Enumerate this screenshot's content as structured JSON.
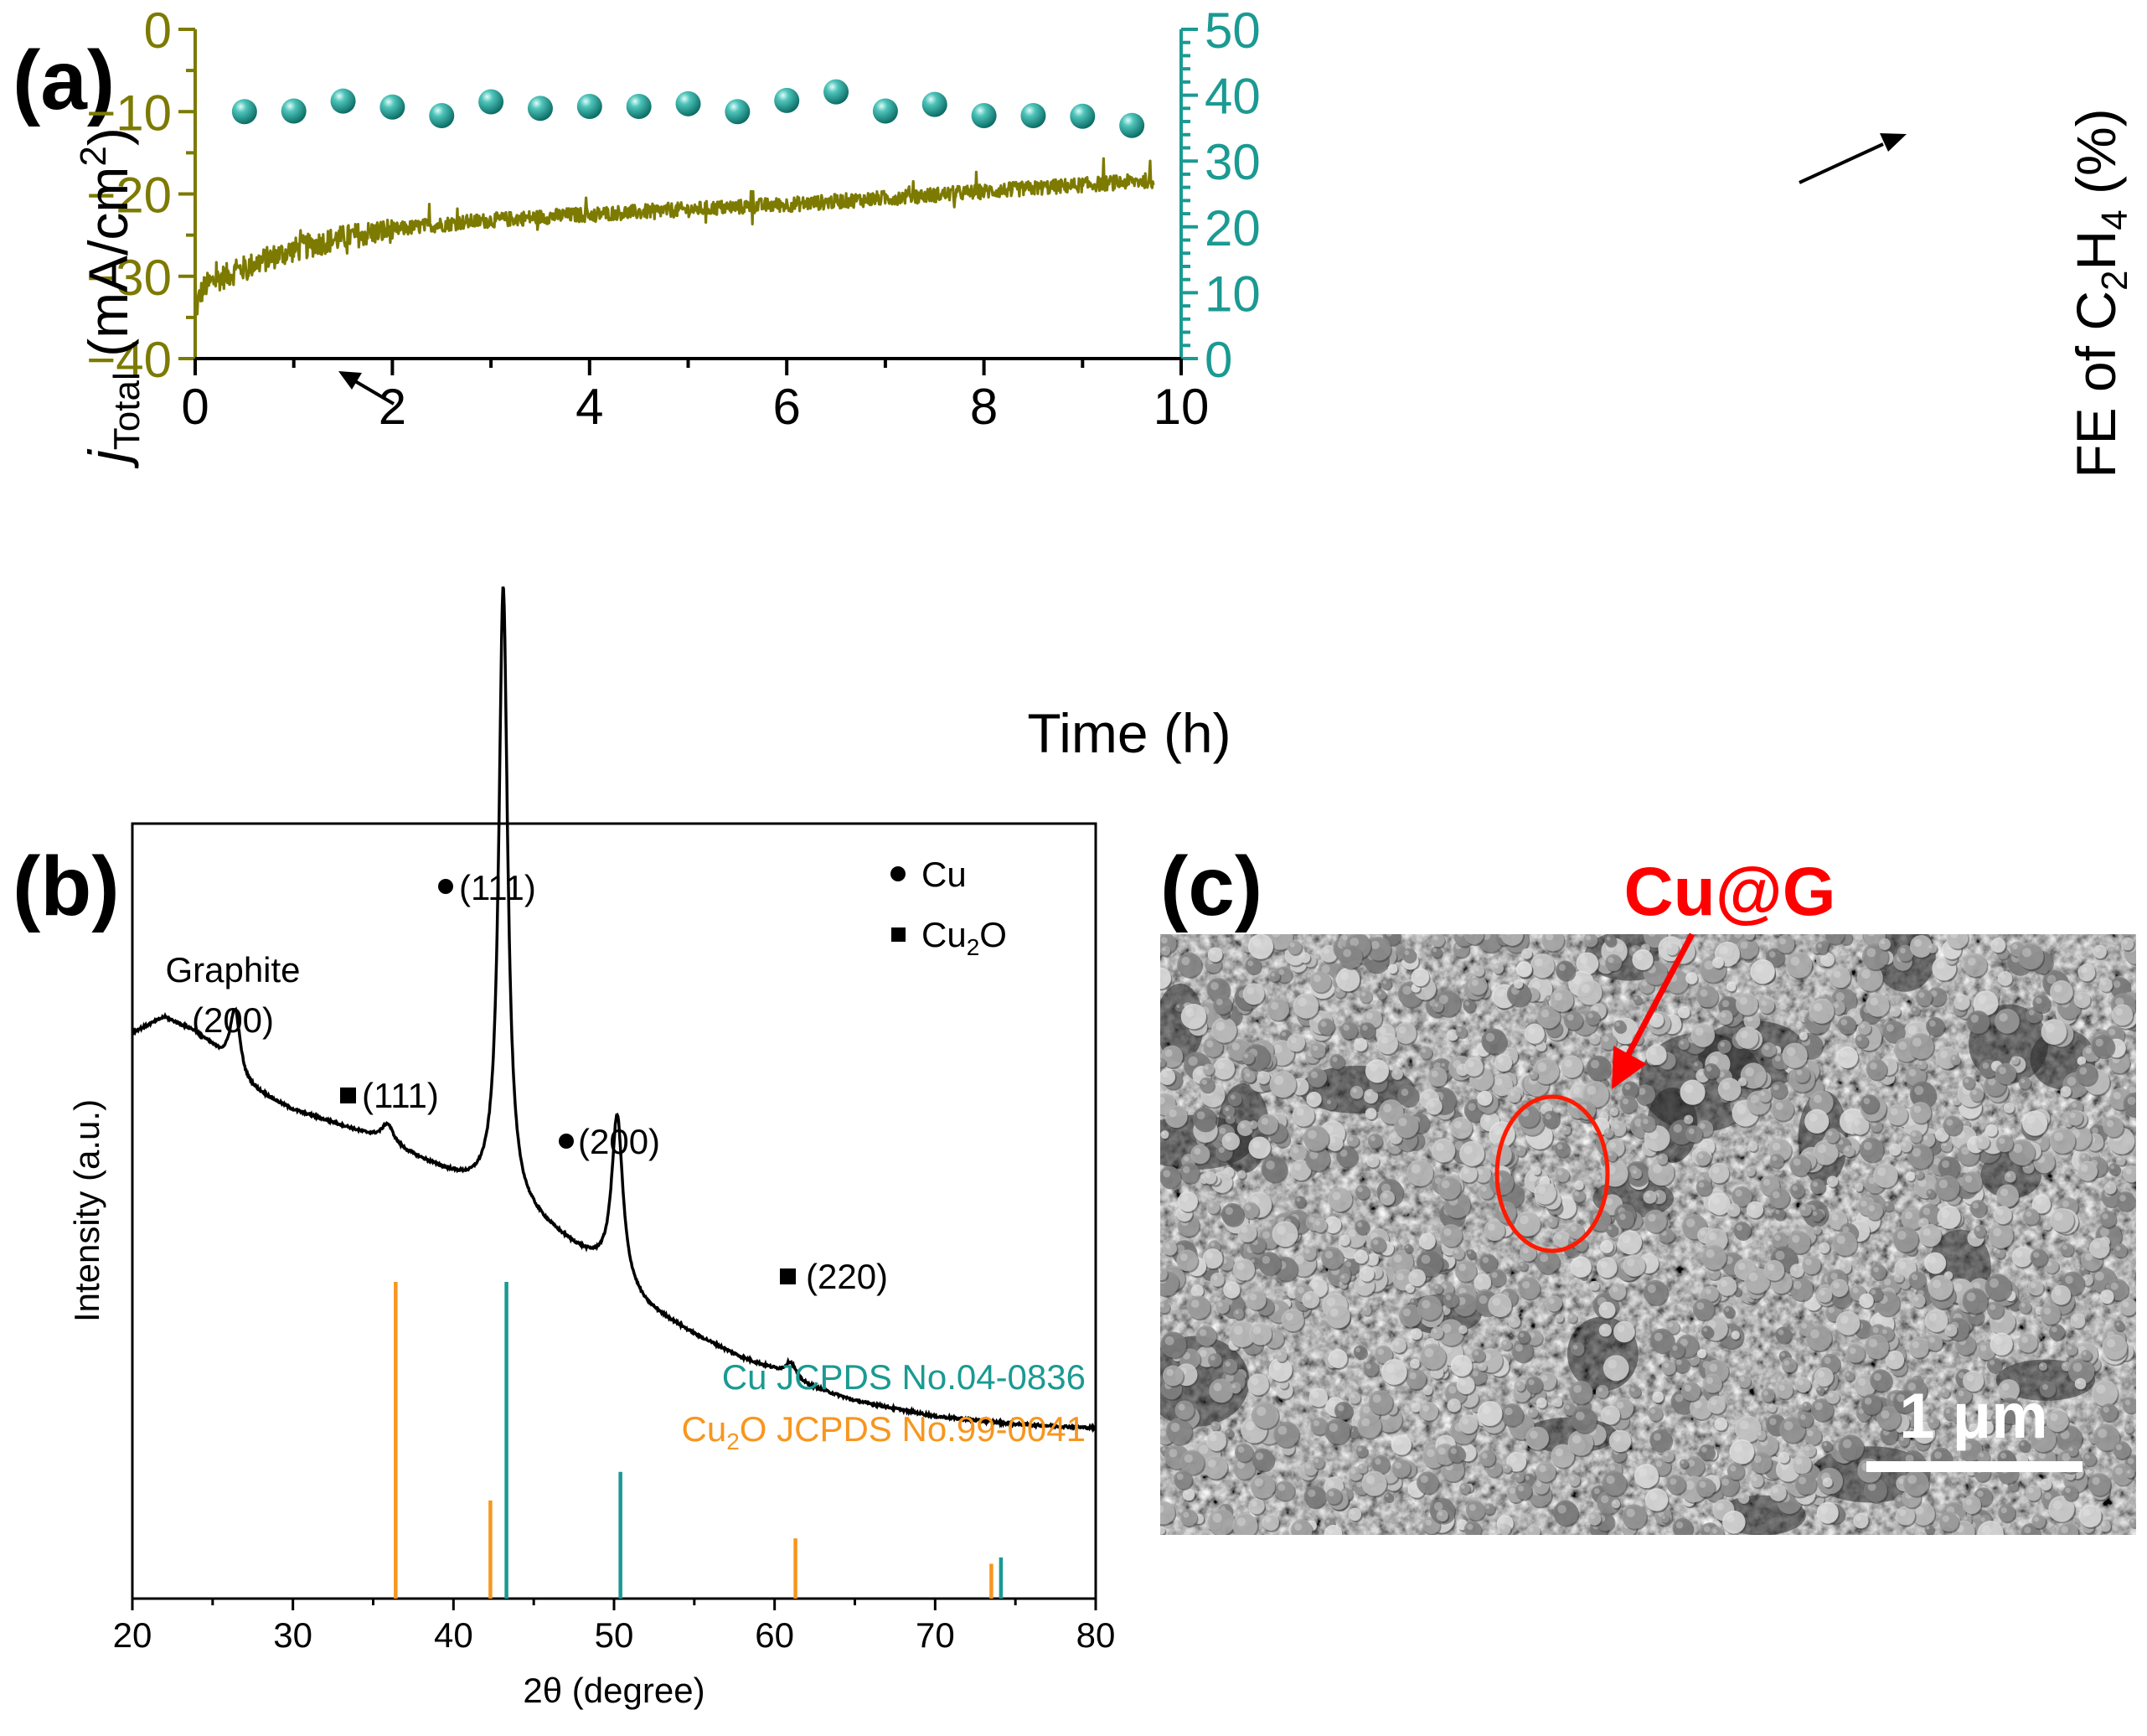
{
  "chart_data": [
    {
      "panel": "(a)",
      "type": "line",
      "xlabel": "Time (h)",
      "xlim": [
        0,
        10
      ],
      "x_ticks": [
        0,
        2,
        4,
        6,
        8,
        10
      ],
      "left_axis": {
        "label_main": "j",
        "label_sub": "Total",
        "label_units": " (mA/cm",
        "label_sup": "2",
        "label_close": ")",
        "ylim": [
          -40,
          0
        ],
        "ticks": [
          0,
          -10,
          -20,
          -30,
          -40
        ],
        "tick_labels": [
          "0",
          "−10",
          "−20",
          "−30",
          "−40"
        ],
        "color": "#7d7a00"
      },
      "right_axis": {
        "label_pre": "FE of C",
        "label_sub1": "2",
        "label_mid": "H",
        "label_sub2": "4",
        "label_post": " (%)",
        "ylim": [
          0,
          50
        ],
        "ticks": [
          0,
          10,
          20,
          30,
          40,
          50
        ],
        "color": "#1a9a92"
      },
      "series": [
        {
          "name": "j_Total",
          "axis": "left",
          "style": "noisy line",
          "x": [
            0.0,
            0.03,
            0.06,
            0.1,
            0.2,
            0.3,
            0.5,
            0.75,
            1.0,
            1.25,
            1.5,
            1.75,
            2.0,
            2.25,
            2.5,
            2.75,
            3.0,
            3.25,
            3.5,
            3.75,
            4.0,
            4.25,
            4.5,
            4.75,
            5.0,
            5.25,
            5.5,
            5.75,
            6.0,
            6.25,
            6.5,
            6.75,
            7.0,
            7.25,
            7.5,
            7.75,
            8.0,
            8.25,
            8.5,
            8.75,
            9.0,
            9.25,
            9.5,
            9.72
          ],
          "values": [
            -35,
            -33,
            -32,
            -31.2,
            -30.5,
            -30.0,
            -29.0,
            -27.8,
            -26.8,
            -26.0,
            -25.3,
            -24.8,
            -24.4,
            -24.0,
            -23.7,
            -23.4,
            -23.2,
            -23.0,
            -22.8,
            -22.6,
            -22.5,
            -22.3,
            -22.2,
            -22.0,
            -21.9,
            -21.7,
            -21.6,
            -21.4,
            -21.3,
            -21.1,
            -20.9,
            -20.7,
            -20.5,
            -20.3,
            -20.1,
            -19.9,
            -19.7,
            -19.5,
            -19.3,
            -19.1,
            -18.9,
            -18.7,
            -18.5,
            -18.3
          ]
        },
        {
          "name": "FE of C2H4",
          "axis": "right",
          "style": "spheres",
          "x": [
            0.5,
            1.0,
            1.5,
            2.0,
            2.5,
            3.0,
            3.5,
            4.0,
            4.5,
            5.0,
            5.5,
            6.0,
            6.5,
            7.0,
            7.5,
            8.0,
            8.5,
            9.0,
            9.5
          ],
          "values": [
            37.5,
            37.6,
            39.1,
            38.2,
            36.9,
            39.0,
            38.0,
            38.3,
            38.3,
            38.7,
            37.5,
            39.2,
            40.5,
            37.6,
            38.6,
            36.9,
            36.9,
            36.8,
            35.4
          ]
        }
      ]
    },
    {
      "panel": "(b)",
      "type": "line",
      "xlabel": "2θ (degree)",
      "ylabel": "Intensity (a.u.)",
      "xlim": [
        20,
        80
      ],
      "x_ticks": [
        20,
        30,
        40,
        50,
        60,
        70,
        80
      ],
      "xrd_pattern": {
        "baseline_x": [
          20,
          22,
          24,
          25,
          27,
          30,
          33,
          35,
          37,
          39,
          41,
          42.5,
          45,
          47,
          49,
          52,
          55,
          58,
          60,
          62,
          65,
          70,
          75,
          80
        ],
        "baseline_y": [
          0.73,
          0.75,
          0.73,
          0.71,
          0.66,
          0.63,
          0.61,
          0.595,
          0.575,
          0.555,
          0.535,
          0.525,
          0.49,
          0.46,
          0.43,
          0.375,
          0.34,
          0.31,
          0.295,
          0.275,
          0.255,
          0.235,
          0.225,
          0.22
        ],
        "peaks": [
          {
            "center": 26.4,
            "height": 0.085,
            "width": 0.4
          },
          {
            "center": 35.9,
            "height": 0.025,
            "width": 0.45
          },
          {
            "center": 43.1,
            "height": 0.79,
            "width": 0.33
          },
          {
            "center": 50.2,
            "height": 0.215,
            "width": 0.42
          },
          {
            "center": 61.0,
            "height": 0.02,
            "width": 0.4
          }
        ]
      },
      "reference_lines": [
        {
          "name": "Cu JCPDS No.04-0836",
          "color": "#1a9a92",
          "positions": [
            43.3,
            50.4,
            74.1
          ],
          "heights": [
            1.0,
            0.4,
            0.13
          ]
        },
        {
          "name": "Cu2O JCPDS No.99-0041",
          "color": "#f7961e",
          "positions": [
            36.4,
            42.3,
            61.3,
            73.5
          ],
          "heights": [
            1.0,
            0.31,
            0.19,
            0.11
          ]
        }
      ],
      "peak_labels": {
        "graphite_name": "Graphite",
        "graphite_hkl": "(200)",
        "cu2o_111": "(111)",
        "cu_111": "(111)",
        "cu_200": "(200)",
        "cu2o_220": "(220)"
      },
      "legend": {
        "cu": "Cu",
        "cu2o_pre": "Cu",
        "cu2o_sub": "2",
        "cu2o_post": "O"
      },
      "ref_legend": {
        "cu": "Cu JCPDS No.04-0836",
        "cu2o_pre": "Cu",
        "cu2o_sub": "2",
        "cu2o_post": "O JCPDS No.99-0041"
      }
    }
  ],
  "panel_c": {
    "label": "(c)",
    "annotation": "Cu@G",
    "scale_bar": "1 μm",
    "annotation_color": "#ff0000"
  }
}
